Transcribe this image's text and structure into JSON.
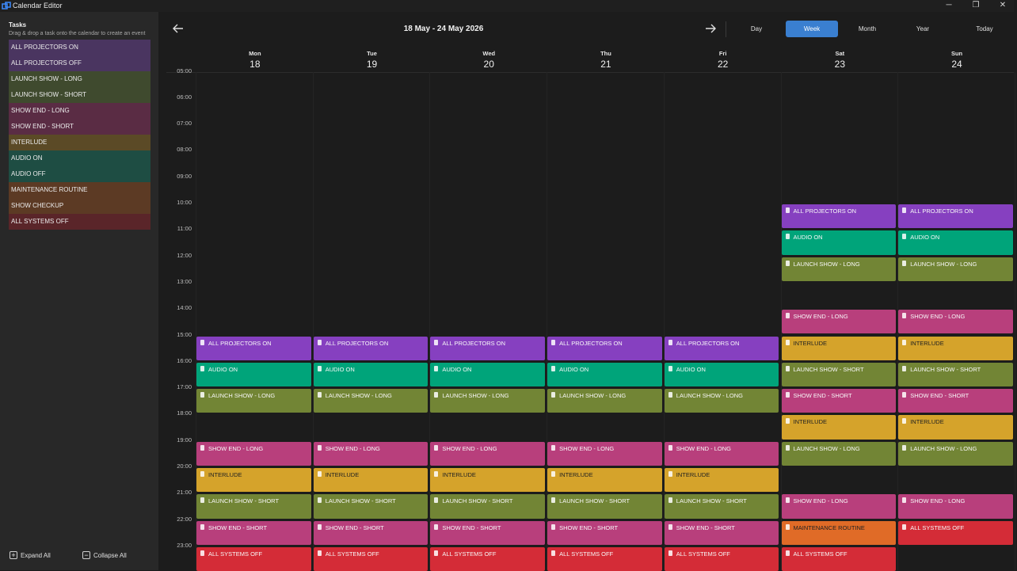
{
  "window": {
    "title": "Calendar Editor",
    "controls": {
      "minimize": "─",
      "restore": "❐",
      "close": "✕"
    }
  },
  "sidebar": {
    "title": "Tasks",
    "hint": "Drag & drop a task onto the calendar to create an event",
    "tasks": [
      {
        "label": "ALL PROJECTORS ON",
        "color": "#4a3560"
      },
      {
        "label": "ALL PROJECTORS OFF",
        "color": "#4a3560"
      },
      {
        "label": "LAUNCH SHOW - LONG",
        "color": "#3f4a2e"
      },
      {
        "label": "LAUNCH SHOW - SHORT",
        "color": "#3f4a2e"
      },
      {
        "label": "SHOW END - LONG",
        "color": "#5a2c44"
      },
      {
        "label": "SHOW END - SHORT",
        "color": "#5a2c44"
      },
      {
        "label": "INTERLUDE",
        "color": "#5b4a26"
      },
      {
        "label": "AUDIO ON",
        "color": "#1e4d43"
      },
      {
        "label": "AUDIO OFF",
        "color": "#1e4d43"
      },
      {
        "label": "MAINTENANCE ROUTINE",
        "color": "#5c3a24"
      },
      {
        "label": "SHOW CHECKUP",
        "color": "#5c3a24"
      },
      {
        "label": "ALL SYSTEMS OFF",
        "color": "#5a2529"
      }
    ],
    "expand_all": "Expand All",
    "collapse_all": "Collapse All"
  },
  "header": {
    "range_title": "18 May - 24 May 2026",
    "views": [
      "Day",
      "Week",
      "Month",
      "Year",
      "Today"
    ],
    "active_view": "Week"
  },
  "days": [
    {
      "name": "Mon",
      "num": "18"
    },
    {
      "name": "Tue",
      "num": "19"
    },
    {
      "name": "Wed",
      "num": "20"
    },
    {
      "name": "Thu",
      "num": "21"
    },
    {
      "name": "Fri",
      "num": "22"
    },
    {
      "name": "Sat",
      "num": "23"
    },
    {
      "name": "Sun",
      "num": "24"
    }
  ],
  "hours": [
    "05:00",
    "06:00",
    "07:00",
    "08:00",
    "09:00",
    "10:00",
    "11:00",
    "12:00",
    "13:00",
    "14:00",
    "15:00",
    "16:00",
    "17:00",
    "18:00",
    "19:00",
    "20:00",
    "21:00",
    "22:00",
    "23:00"
  ],
  "colors": {
    "purple": "#8640c0",
    "teal": "#00a47a",
    "olive": "#728535",
    "pink": "#b83f7c",
    "yellow": "#d5a32b",
    "orange": "#e06b27",
    "red": "#d42c37"
  },
  "events": [
    {
      "day": 0,
      "hour": 15,
      "label": "ALL PROJECTORS ON",
      "color": "purple"
    },
    {
      "day": 0,
      "hour": 16,
      "label": "AUDIO ON",
      "color": "teal"
    },
    {
      "day": 0,
      "hour": 17,
      "label": "LAUNCH SHOW - LONG",
      "color": "olive"
    },
    {
      "day": 0,
      "hour": 19,
      "label": "SHOW END - LONG",
      "color": "pink"
    },
    {
      "day": 0,
      "hour": 20,
      "label": "INTERLUDE",
      "color": "yellow"
    },
    {
      "day": 0,
      "hour": 21,
      "label": "LAUNCH SHOW - SHORT",
      "color": "olive"
    },
    {
      "day": 0,
      "hour": 22,
      "label": "SHOW END - SHORT",
      "color": "pink"
    },
    {
      "day": 0,
      "hour": 23,
      "label": "ALL SYSTEMS OFF",
      "color": "red"
    },
    {
      "day": 1,
      "hour": 15,
      "label": "ALL PROJECTORS ON",
      "color": "purple"
    },
    {
      "day": 1,
      "hour": 16,
      "label": "AUDIO ON",
      "color": "teal"
    },
    {
      "day": 1,
      "hour": 17,
      "label": "LAUNCH SHOW - LONG",
      "color": "olive"
    },
    {
      "day": 1,
      "hour": 19,
      "label": "SHOW END - LONG",
      "color": "pink"
    },
    {
      "day": 1,
      "hour": 20,
      "label": "INTERLUDE",
      "color": "yellow"
    },
    {
      "day": 1,
      "hour": 21,
      "label": "LAUNCH SHOW - SHORT",
      "color": "olive"
    },
    {
      "day": 1,
      "hour": 22,
      "label": "SHOW END - SHORT",
      "color": "pink"
    },
    {
      "day": 1,
      "hour": 23,
      "label": "ALL SYSTEMS OFF",
      "color": "red"
    },
    {
      "day": 2,
      "hour": 15,
      "label": "ALL PROJECTORS ON",
      "color": "purple"
    },
    {
      "day": 2,
      "hour": 16,
      "label": "AUDIO ON",
      "color": "teal"
    },
    {
      "day": 2,
      "hour": 17,
      "label": "LAUNCH SHOW - LONG",
      "color": "olive"
    },
    {
      "day": 2,
      "hour": 19,
      "label": "SHOW END - LONG",
      "color": "pink"
    },
    {
      "day": 2,
      "hour": 20,
      "label": "INTERLUDE",
      "color": "yellow"
    },
    {
      "day": 2,
      "hour": 21,
      "label": "LAUNCH SHOW - SHORT",
      "color": "olive"
    },
    {
      "day": 2,
      "hour": 22,
      "label": "SHOW END - SHORT",
      "color": "pink"
    },
    {
      "day": 2,
      "hour": 23,
      "label": "ALL SYSTEMS OFF",
      "color": "red"
    },
    {
      "day": 3,
      "hour": 15,
      "label": "ALL PROJECTORS ON",
      "color": "purple"
    },
    {
      "day": 3,
      "hour": 16,
      "label": "AUDIO ON",
      "color": "teal"
    },
    {
      "day": 3,
      "hour": 17,
      "label": "LAUNCH SHOW - LONG",
      "color": "olive"
    },
    {
      "day": 3,
      "hour": 19,
      "label": "SHOW END - LONG",
      "color": "pink"
    },
    {
      "day": 3,
      "hour": 20,
      "label": "INTERLUDE",
      "color": "yellow"
    },
    {
      "day": 3,
      "hour": 21,
      "label": "LAUNCH SHOW - SHORT",
      "color": "olive"
    },
    {
      "day": 3,
      "hour": 22,
      "label": "SHOW END - SHORT",
      "color": "pink"
    },
    {
      "day": 3,
      "hour": 23,
      "label": "ALL SYSTEMS OFF",
      "color": "red"
    },
    {
      "day": 4,
      "hour": 15,
      "label": "ALL PROJECTORS ON",
      "color": "purple"
    },
    {
      "day": 4,
      "hour": 16,
      "label": "AUDIO ON",
      "color": "teal"
    },
    {
      "day": 4,
      "hour": 17,
      "label": "LAUNCH SHOW - LONG",
      "color": "olive"
    },
    {
      "day": 4,
      "hour": 19,
      "label": "SHOW END - LONG",
      "color": "pink"
    },
    {
      "day": 4,
      "hour": 20,
      "label": "INTERLUDE",
      "color": "yellow"
    },
    {
      "day": 4,
      "hour": 21,
      "label": "LAUNCH SHOW - SHORT",
      "color": "olive"
    },
    {
      "day": 4,
      "hour": 22,
      "label": "SHOW END - SHORT",
      "color": "pink"
    },
    {
      "day": 4,
      "hour": 23,
      "label": "ALL SYSTEMS OFF",
      "color": "red"
    },
    {
      "day": 5,
      "hour": 10,
      "label": "ALL PROJECTORS ON",
      "color": "purple"
    },
    {
      "day": 5,
      "hour": 11,
      "label": "AUDIO ON",
      "color": "teal"
    },
    {
      "day": 5,
      "hour": 12,
      "label": "LAUNCH SHOW - LONG",
      "color": "olive"
    },
    {
      "day": 5,
      "hour": 14,
      "label": "SHOW END - LONG",
      "color": "pink"
    },
    {
      "day": 5,
      "hour": 15,
      "label": "INTERLUDE",
      "color": "yellow"
    },
    {
      "day": 5,
      "hour": 16,
      "label": "LAUNCH SHOW - SHORT",
      "color": "olive"
    },
    {
      "day": 5,
      "hour": 17,
      "label": "SHOW END - SHORT",
      "color": "pink"
    },
    {
      "day": 5,
      "hour": 18,
      "label": "INTERLUDE",
      "color": "yellow"
    },
    {
      "day": 5,
      "hour": 19,
      "label": "LAUNCH SHOW - LONG",
      "color": "olive"
    },
    {
      "day": 5,
      "hour": 21,
      "label": "SHOW END - LONG",
      "color": "pink"
    },
    {
      "day": 5,
      "hour": 22,
      "label": "MAINTENANCE ROUTINE",
      "color": "orange"
    },
    {
      "day": 5,
      "hour": 23,
      "label": "ALL SYSTEMS OFF",
      "color": "red"
    },
    {
      "day": 6,
      "hour": 10,
      "label": "ALL PROJECTORS ON",
      "color": "purple"
    },
    {
      "day": 6,
      "hour": 11,
      "label": "AUDIO ON",
      "color": "teal"
    },
    {
      "day": 6,
      "hour": 12,
      "label": "LAUNCH SHOW - LONG",
      "color": "olive"
    },
    {
      "day": 6,
      "hour": 14,
      "label": "SHOW END - LONG",
      "color": "pink"
    },
    {
      "day": 6,
      "hour": 15,
      "label": "INTERLUDE",
      "color": "yellow"
    },
    {
      "day": 6,
      "hour": 16,
      "label": "LAUNCH SHOW - SHORT",
      "color": "olive"
    },
    {
      "day": 6,
      "hour": 17,
      "label": "SHOW END - SHORT",
      "color": "pink"
    },
    {
      "day": 6,
      "hour": 18,
      "label": "INTERLUDE",
      "color": "yellow"
    },
    {
      "day": 6,
      "hour": 19,
      "label": "LAUNCH SHOW - LONG",
      "color": "olive"
    },
    {
      "day": 6,
      "hour": 21,
      "label": "SHOW END - LONG",
      "color": "pink"
    },
    {
      "day": 6,
      "hour": 22,
      "label": "ALL SYSTEMS OFF",
      "color": "red"
    }
  ]
}
